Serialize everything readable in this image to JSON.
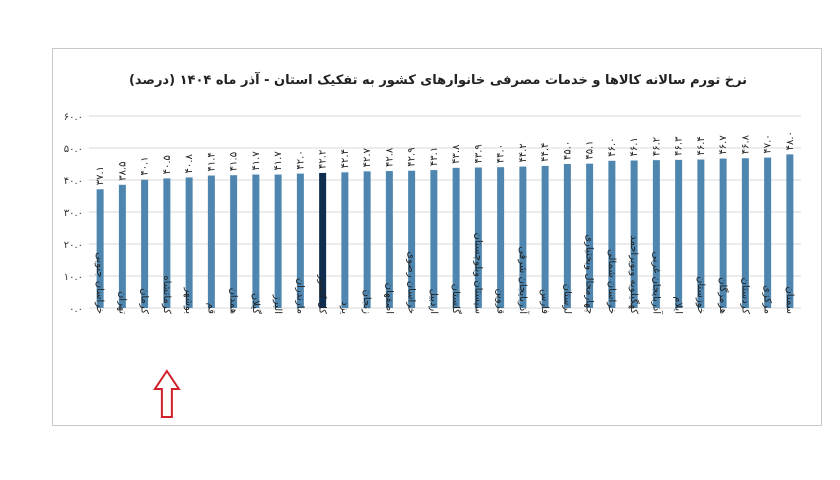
{
  "chart_data": {
    "type": "bar",
    "title": "نرخ تورم سالانه کالاها و خدمات مصرفی خانوارهای کشور به تفکیک استان - آذر ماه ۱۴۰۴ (درصد)",
    "xlabel": "",
    "ylabel": "",
    "ylim": [
      0,
      60
    ],
    "yticks": [
      0,
      10,
      20,
      30,
      40,
      50,
      60
    ],
    "ytick_labels": [
      "۰.۰",
      "۱۰.۰",
      "۲۰.۰",
      "۳۰.۰",
      "۴۰.۰",
      "۵۰.۰",
      "۶۰.۰"
    ],
    "grid": true,
    "legend": "none",
    "categories": [
      "خراسان جنوبی",
      "تهران",
      "کرمان",
      "کرمانشاه",
      "بوشهر",
      "قم",
      "همدان",
      "گیلان",
      "البرز",
      "مازندران",
      "کل کشور",
      "یزد",
      "زنجان",
      "اصفهان",
      "خراسان رضوی",
      "اردبیل",
      "گلستان",
      "سیستان وبلوچستان",
      "قزوین",
      "آذربایجان شرقی",
      "فارس",
      "لرستان",
      "چهارمحال وبختیاری",
      "خراسان شمالی",
      "کهگیلویه وبویراحمد",
      "آذربایجان غربی",
      "ایلام",
      "خوزستان",
      "هرمزگان",
      "کردستان",
      "مرکزی",
      "سمنان"
    ],
    "values": [
      37.1,
      38.5,
      40.1,
      40.5,
      40.8,
      41.4,
      41.5,
      41.7,
      41.7,
      42.0,
      42.2,
      42.4,
      42.7,
      42.8,
      42.9,
      43.1,
      43.8,
      43.9,
      44.0,
      44.2,
      44.4,
      45.0,
      45.1,
      46.0,
      46.1,
      46.2,
      46.3,
      46.4,
      46.7,
      46.8,
      47.0,
      48.0
    ],
    "value_labels": [
      "۳۷.۱",
      "۳۸.۵",
      "۴۰.۱",
      "۴۰.۵",
      "۴۰.۸",
      "۴۱.۴",
      "۴۱.۵",
      "۴۱.۷",
      "۴۱.۷",
      "۴۲.۰",
      "۴۲.۲",
      "۴۲.۴",
      "۴۲.۷",
      "۴۲.۸",
      "۴۲.۹",
      "۴۳.۱",
      "۴۳.۸",
      "۴۳.۹",
      "۴۴.۰",
      "۴۴.۲",
      "۴۴.۴",
      "۴۵.۰",
      "۴۵.۱",
      "۴۶.۰",
      "۴۶.۱",
      "۴۶.۲",
      "۴۶.۳",
      "۴۶.۴",
      "۴۶.۷",
      "۴۶.۸",
      "۴۷.۰",
      "۴۸.۰"
    ],
    "highlight_category": "کل کشور",
    "annotated_category": "کرمانشاه",
    "colors": {
      "bar": "#4f86b0",
      "highlight": "#0f2d4f",
      "arrow": "#d0202a",
      "grid": "#d9d9d9"
    }
  }
}
